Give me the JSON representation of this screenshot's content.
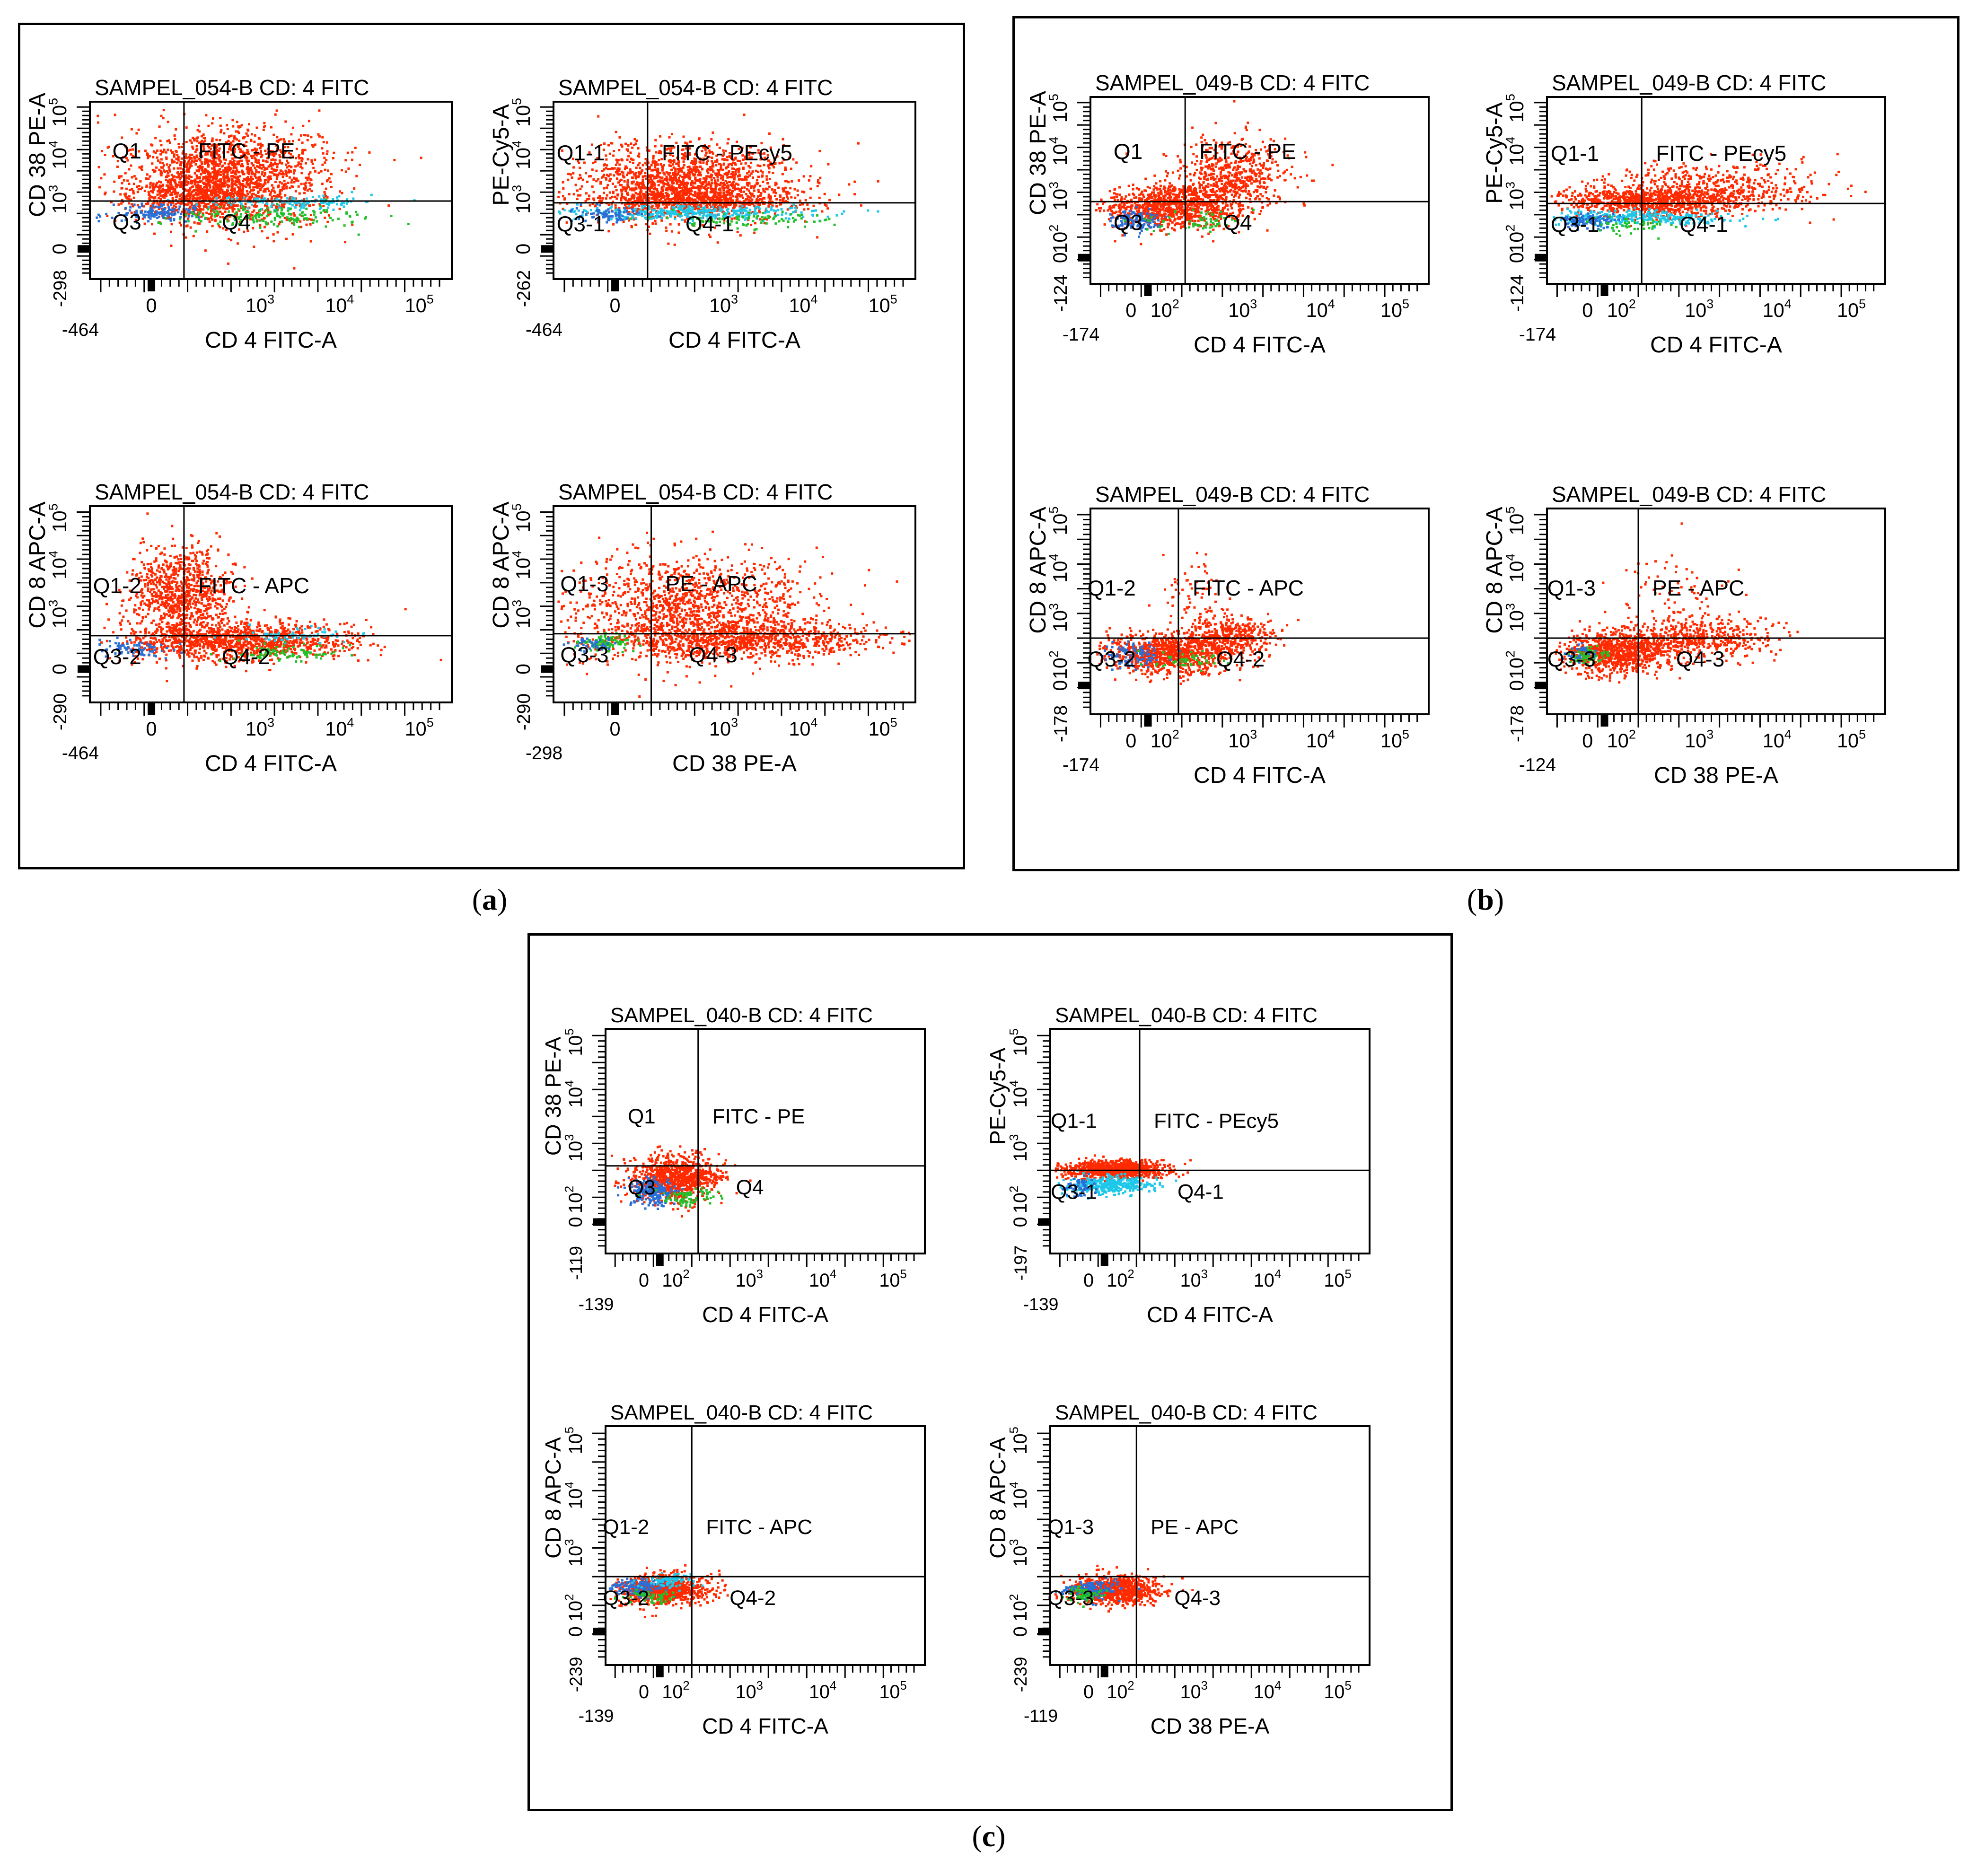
{
  "colors": {
    "red": "#ff2a00",
    "blue": "#2a6fd6",
    "cyan": "#1ec8e8",
    "green": "#22c02a"
  },
  "captions": {
    "a": "a",
    "b": "b",
    "c": "c"
  },
  "chart_data": [
    {
      "id": "a1",
      "type": "scatter",
      "panel": "a",
      "title": "SAMPEL_054-B CD: 4 FITC",
      "xlabel": "CD 4 FITC-A",
      "ylabel": "CD 38 PE-A",
      "xmin_label": "-464",
      "ymin_label": "-298",
      "xticks": [
        "0",
        "10^3",
        "10^4",
        "10^5"
      ],
      "yticks": [
        "0",
        "10^3",
        "10^4",
        "10^5"
      ],
      "quadrant_labels": {
        "q1": "Q1",
        "q2": "FITC - PE",
        "q3": "Q3",
        "q4": "Q4"
      },
      "gate": {
        "x": 0.26,
        "y": 0.56
      },
      "populations": [
        {
          "color": "red",
          "cx": 0.38,
          "cy": 0.41,
          "sx": 0.14,
          "sy": 0.14,
          "n": 1600
        },
        {
          "color": "red",
          "cx": 0.3,
          "cy": 0.52,
          "sx": 0.1,
          "sy": 0.06,
          "n": 500
        },
        {
          "color": "blue",
          "cx": 0.18,
          "cy": 0.62,
          "sx": 0.06,
          "sy": 0.025,
          "n": 140
        },
        {
          "color": "cyan",
          "cx": 0.55,
          "cy": 0.56,
          "sx": 0.13,
          "sy": 0.02,
          "n": 130
        },
        {
          "color": "green",
          "cx": 0.48,
          "cy": 0.64,
          "sx": 0.12,
          "sy": 0.03,
          "n": 170
        }
      ]
    },
    {
      "id": "a2",
      "type": "scatter",
      "panel": "a",
      "title": "SAMPEL_054-B CD: 4 FITC",
      "xlabel": "CD 4 FITC-A",
      "ylabel": "PE-Cy5-A",
      "xmin_label": "-464",
      "ymin_label": "-262",
      "xticks": [
        "0",
        "10^3",
        "10^4",
        "10^5"
      ],
      "yticks": [
        "0",
        "10^3",
        "10^4",
        "10^5"
      ],
      "quadrant_labels": {
        "q1": "Q1-1",
        "q2": "FITC - PEcy5",
        "q3": "Q3-1",
        "q4": "Q4-1"
      },
      "gate": {
        "x": 0.26,
        "y": 0.57
      },
      "populations": [
        {
          "color": "red",
          "cx": 0.36,
          "cy": 0.45,
          "sx": 0.15,
          "sy": 0.11,
          "n": 1500
        },
        {
          "color": "red",
          "cx": 0.4,
          "cy": 0.55,
          "sx": 0.15,
          "sy": 0.03,
          "n": 450
        },
        {
          "color": "cyan",
          "cx": 0.38,
          "cy": 0.62,
          "sx": 0.17,
          "sy": 0.02,
          "n": 350
        },
        {
          "color": "blue",
          "cx": 0.15,
          "cy": 0.63,
          "sx": 0.05,
          "sy": 0.02,
          "n": 80
        },
        {
          "color": "green",
          "cx": 0.55,
          "cy": 0.66,
          "sx": 0.1,
          "sy": 0.02,
          "n": 90
        }
      ]
    },
    {
      "id": "a3",
      "type": "scatter",
      "panel": "a",
      "title": "SAMPEL_054-B CD: 4 FITC",
      "xlabel": "CD 4 FITC-A",
      "ylabel": "CD 8 APC-A",
      "xmin_label": "-464",
      "ymin_label": "-290",
      "xticks": [
        "0",
        "10^3",
        "10^4",
        "10^5"
      ],
      "yticks": [
        "0",
        "10^3",
        "10^4",
        "10^5"
      ],
      "quadrant_labels": {
        "q1": "Q1-2",
        "q2": "FITC - APC",
        "q3": "Q3-2",
        "q4": "Q4-2"
      },
      "gate": {
        "x": 0.26,
        "y": 0.66
      },
      "populations": [
        {
          "color": "red",
          "cx": 0.25,
          "cy": 0.45,
          "sx": 0.07,
          "sy": 0.12,
          "n": 900
        },
        {
          "color": "red",
          "cx": 0.4,
          "cy": 0.68,
          "sx": 0.16,
          "sy": 0.05,
          "n": 1100
        },
        {
          "color": "blue",
          "cx": 0.12,
          "cy": 0.72,
          "sx": 0.05,
          "sy": 0.02,
          "n": 80
        },
        {
          "color": "cyan",
          "cx": 0.55,
          "cy": 0.65,
          "sx": 0.08,
          "sy": 0.02,
          "n": 60
        },
        {
          "color": "green",
          "cx": 0.55,
          "cy": 0.74,
          "sx": 0.08,
          "sy": 0.02,
          "n": 90
        }
      ]
    },
    {
      "id": "a4",
      "type": "scatter",
      "panel": "a",
      "title": "SAMPEL_054-B CD: 4 FITC",
      "xlabel": "CD 38 PE-A",
      "ylabel": "CD 8 APC-A",
      "xmin_label": "-298",
      "ymin_label": "-290",
      "xticks": [
        "0",
        "10^3",
        "10^4",
        "10^5"
      ],
      "yticks": [
        "0",
        "10^3",
        "10^4",
        "10^5"
      ],
      "quadrant_labels": {
        "q1": "Q1-3",
        "q2": "PE - APC",
        "q3": "Q3-3",
        "q4": "Q4-3"
      },
      "gate": {
        "x": 0.27,
        "y": 0.65
      },
      "populations": [
        {
          "color": "red",
          "cx": 0.38,
          "cy": 0.5,
          "sx": 0.16,
          "sy": 0.13,
          "n": 1200
        },
        {
          "color": "red",
          "cx": 0.5,
          "cy": 0.68,
          "sx": 0.2,
          "sy": 0.05,
          "n": 1000
        },
        {
          "color": "green",
          "cx": 0.14,
          "cy": 0.69,
          "sx": 0.04,
          "sy": 0.02,
          "n": 90
        },
        {
          "color": "blue",
          "cx": 0.1,
          "cy": 0.7,
          "sx": 0.03,
          "sy": 0.02,
          "n": 40
        }
      ]
    },
    {
      "id": "b1",
      "type": "scatter",
      "panel": "b",
      "title": "SAMPEL_049-B CD: 4 FITC",
      "xlabel": "CD 4 FITC-A",
      "ylabel": "CD 38 PE-A",
      "xmin_label": "-174",
      "ymin_label": "-124",
      "xticks": [
        "0",
        "10^2",
        "10^3",
        "10^4",
        "10^5"
      ],
      "yticks": [
        "0",
        "10^2",
        "10^3",
        "10^4",
        "10^5"
      ],
      "quadrant_labels": {
        "q1": "Q1",
        "q2": "FITC - PE",
        "q3": "Q3",
        "q4": "Q4"
      },
      "gate": {
        "x": 0.28,
        "y": 0.56
      },
      "populations": [
        {
          "color": "red",
          "cx": 0.23,
          "cy": 0.58,
          "sx": 0.1,
          "sy": 0.06,
          "n": 900
        },
        {
          "color": "red",
          "cx": 0.4,
          "cy": 0.45,
          "sx": 0.08,
          "sy": 0.09,
          "n": 450
        },
        {
          "color": "red",
          "cx": 0.45,
          "cy": 0.35,
          "sx": 0.08,
          "sy": 0.1,
          "n": 150
        },
        {
          "color": "blue",
          "cx": 0.13,
          "cy": 0.66,
          "sx": 0.04,
          "sy": 0.03,
          "n": 130
        },
        {
          "color": "green",
          "cx": 0.3,
          "cy": 0.66,
          "sx": 0.08,
          "sy": 0.03,
          "n": 60
        }
      ]
    },
    {
      "id": "b2",
      "type": "scatter",
      "panel": "b",
      "title": "SAMPEL_049-B CD: 4 FITC",
      "xlabel": "CD 4 FITC-A",
      "ylabel": "PE-Cy5-A",
      "xmin_label": "-174",
      "ymin_label": "-124",
      "xticks": [
        "0",
        "10^2",
        "10^3",
        "10^4",
        "10^5"
      ],
      "yticks": [
        "0",
        "10^2",
        "10^3",
        "10^4",
        "10^5"
      ],
      "quadrant_labels": {
        "q1": "Q1-1",
        "q2": "FITC - PEcy5",
        "q3": "Q3-1",
        "q4": "Q4-1"
      },
      "gate": {
        "x": 0.28,
        "y": 0.57
      },
      "populations": [
        {
          "color": "red",
          "cx": 0.3,
          "cy": 0.55,
          "sx": 0.14,
          "sy": 0.04,
          "n": 900
        },
        {
          "color": "red",
          "cx": 0.48,
          "cy": 0.48,
          "sx": 0.16,
          "sy": 0.07,
          "n": 450
        },
        {
          "color": "cyan",
          "cx": 0.25,
          "cy": 0.64,
          "sx": 0.14,
          "sy": 0.02,
          "n": 320
        },
        {
          "color": "blue",
          "cx": 0.12,
          "cy": 0.66,
          "sx": 0.04,
          "sy": 0.02,
          "n": 100
        },
        {
          "color": "green",
          "cx": 0.25,
          "cy": 0.68,
          "sx": 0.06,
          "sy": 0.02,
          "n": 50
        }
      ]
    },
    {
      "id": "b3",
      "type": "scatter",
      "panel": "b",
      "title": "SAMPEL_049-B CD: 4 FITC",
      "xlabel": "CD 4 FITC-A",
      "ylabel": "CD 8 APC-A",
      "xmin_label": "-174",
      "ymin_label": "-178",
      "xticks": [
        "0",
        "10^2",
        "10^3",
        "10^4",
        "10^5"
      ],
      "yticks": [
        "0",
        "10^2",
        "10^3",
        "10^4",
        "10^5"
      ],
      "quadrant_labels": {
        "q1": "Q1-2",
        "q2": "FITC - APC",
        "q3": "Q3-2",
        "q4": "Q4-2"
      },
      "gate": {
        "x": 0.26,
        "y": 0.63
      },
      "populations": [
        {
          "color": "red",
          "cx": 0.22,
          "cy": 0.7,
          "sx": 0.09,
          "sy": 0.05,
          "n": 900
        },
        {
          "color": "red",
          "cx": 0.4,
          "cy": 0.62,
          "sx": 0.07,
          "sy": 0.05,
          "n": 450
        },
        {
          "color": "red",
          "cx": 0.3,
          "cy": 0.38,
          "sx": 0.06,
          "sy": 0.08,
          "n": 60
        },
        {
          "color": "blue",
          "cx": 0.12,
          "cy": 0.71,
          "sx": 0.04,
          "sy": 0.03,
          "n": 100
        },
        {
          "color": "green",
          "cx": 0.28,
          "cy": 0.73,
          "sx": 0.06,
          "sy": 0.02,
          "n": 50
        }
      ]
    },
    {
      "id": "b4",
      "type": "scatter",
      "panel": "b",
      "title": "SAMPEL_049-B CD: 4 FITC",
      "xlabel": "CD 38 PE-A",
      "ylabel": "CD 8 APC-A",
      "xmin_label": "-124",
      "ymin_label": "-178",
      "xticks": [
        "0",
        "10^2",
        "10^3",
        "10^4",
        "10^5"
      ],
      "yticks": [
        "0",
        "10^2",
        "10^3",
        "10^4",
        "10^5"
      ],
      "quadrant_labels": {
        "q1": "Q1-3",
        "q2": "PE - APC",
        "q3": "Q3-3",
        "q4": "Q4-3"
      },
      "gate": {
        "x": 0.27,
        "y": 0.63
      },
      "populations": [
        {
          "color": "red",
          "cx": 0.2,
          "cy": 0.7,
          "sx": 0.08,
          "sy": 0.05,
          "n": 800
        },
        {
          "color": "red",
          "cx": 0.42,
          "cy": 0.63,
          "sx": 0.12,
          "sy": 0.05,
          "n": 550
        },
        {
          "color": "red",
          "cx": 0.38,
          "cy": 0.4,
          "sx": 0.08,
          "sy": 0.1,
          "n": 70
        },
        {
          "color": "green",
          "cx": 0.12,
          "cy": 0.71,
          "sx": 0.03,
          "sy": 0.02,
          "n": 70
        },
        {
          "color": "blue",
          "cx": 0.1,
          "cy": 0.7,
          "sx": 0.02,
          "sy": 0.02,
          "n": 30
        }
      ]
    },
    {
      "id": "c1",
      "type": "scatter",
      "panel": "c",
      "title": "SAMPEL_040-B CD: 4 FITC",
      "xlabel": "CD 4 FITC-A",
      "ylabel": "CD 38 PE-A",
      "xmin_label": "-139",
      "ymin_label": "-119",
      "xticks": [
        "0",
        "10^2",
        "10^3",
        "10^4",
        "10^5"
      ],
      "yticks": [
        "0",
        "10^2",
        "10^3",
        "10^4",
        "10^5"
      ],
      "quadrant_labels": {
        "q1": "Q1",
        "q2": "FITC - PE",
        "q3": "Q3",
        "q4": "Q4"
      },
      "gate": {
        "x": 0.29,
        "y": 0.61
      },
      "populations": [
        {
          "color": "red",
          "cx": 0.22,
          "cy": 0.66,
          "sx": 0.07,
          "sy": 0.05,
          "n": 900
        },
        {
          "color": "blue",
          "cx": 0.14,
          "cy": 0.72,
          "sx": 0.04,
          "sy": 0.03,
          "n": 200
        },
        {
          "color": "green",
          "cx": 0.26,
          "cy": 0.74,
          "sx": 0.05,
          "sy": 0.02,
          "n": 80
        }
      ]
    },
    {
      "id": "c2",
      "type": "scatter",
      "panel": "c",
      "title": "SAMPEL_040-B CD: 4 FITC",
      "xlabel": "CD 4 FITC-A",
      "ylabel": "PE-Cy5-A",
      "xmin_label": "-139",
      "ymin_label": "-197",
      "xticks": [
        "0",
        "10^2",
        "10^3",
        "10^4",
        "10^5"
      ],
      "yticks": [
        "0",
        "10^2",
        "10^3",
        "10^4",
        "10^5"
      ],
      "quadrant_labels": {
        "q1": "Q1-1",
        "q2": "FITC - PEcy5",
        "q3": "Q3-1",
        "q4": "Q4-1"
      },
      "gate": {
        "x": 0.28,
        "y": 0.63
      },
      "populations": [
        {
          "color": "red",
          "cx": 0.2,
          "cy": 0.62,
          "sx": 0.08,
          "sy": 0.02,
          "n": 800
        },
        {
          "color": "cyan",
          "cx": 0.18,
          "cy": 0.69,
          "sx": 0.07,
          "sy": 0.02,
          "n": 350
        },
        {
          "color": "blue",
          "cx": 0.09,
          "cy": 0.7,
          "sx": 0.03,
          "sy": 0.02,
          "n": 60
        }
      ]
    },
    {
      "id": "c3",
      "type": "scatter",
      "panel": "c",
      "title": "SAMPEL_040-B CD: 4 FITC",
      "xlabel": "CD 4 FITC-A",
      "ylabel": "CD 8 APC-A",
      "xmin_label": "-139",
      "ymin_label": "-239",
      "xticks": [
        "0",
        "10^2",
        "10^3",
        "10^4",
        "10^5"
      ],
      "yticks": [
        "0",
        "10^2",
        "10^3",
        "10^4",
        "10^5"
      ],
      "quadrant_labels": {
        "q1": "Q1-2",
        "q2": "FITC - APC",
        "q3": "Q3-2",
        "q4": "Q4-2"
      },
      "gate": {
        "x": 0.27,
        "y": 0.63
      },
      "populations": [
        {
          "color": "red",
          "cx": 0.18,
          "cy": 0.68,
          "sx": 0.07,
          "sy": 0.03,
          "n": 850
        },
        {
          "color": "blue",
          "cx": 0.1,
          "cy": 0.67,
          "sx": 0.04,
          "sy": 0.02,
          "n": 150
        },
        {
          "color": "cyan",
          "cx": 0.2,
          "cy": 0.64,
          "sx": 0.05,
          "sy": 0.015,
          "n": 80
        },
        {
          "color": "green",
          "cx": 0.14,
          "cy": 0.71,
          "sx": 0.04,
          "sy": 0.015,
          "n": 60
        }
      ]
    },
    {
      "id": "c4",
      "type": "scatter",
      "panel": "c",
      "title": "SAMPEL_040-B CD: 4 FITC",
      "xlabel": "CD 38 PE-A",
      "ylabel": "CD 8 APC-A",
      "xmin_label": "-119",
      "ymin_label": "-239",
      "xticks": [
        "0",
        "10^2",
        "10^3",
        "10^4",
        "10^5"
      ],
      "yticks": [
        "0",
        "10^2",
        "10^3",
        "10^4",
        "10^5"
      ],
      "quadrant_labels": {
        "q1": "Q1-3",
        "q2": "PE - APC",
        "q3": "Q3-3",
        "q4": "Q4-3"
      },
      "gate": {
        "x": 0.27,
        "y": 0.63
      },
      "populations": [
        {
          "color": "red",
          "cx": 0.2,
          "cy": 0.68,
          "sx": 0.07,
          "sy": 0.03,
          "n": 800
        },
        {
          "color": "blue",
          "cx": 0.12,
          "cy": 0.68,
          "sx": 0.04,
          "sy": 0.02,
          "n": 150
        },
        {
          "color": "green",
          "cx": 0.1,
          "cy": 0.7,
          "sx": 0.03,
          "sy": 0.015,
          "n": 70
        }
      ]
    }
  ]
}
